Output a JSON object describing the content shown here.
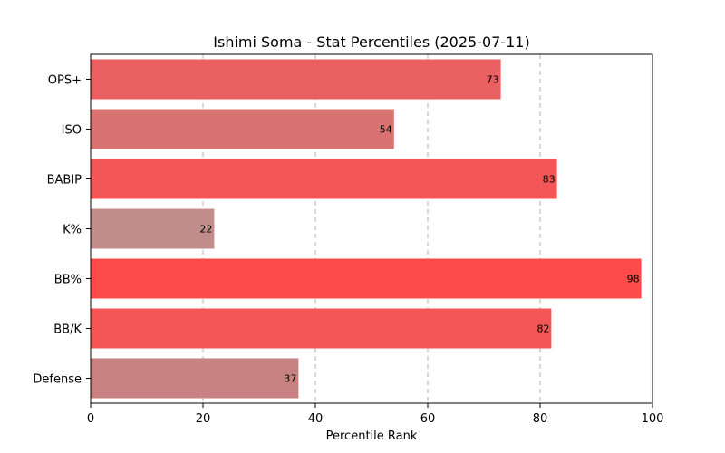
{
  "chart_data": {
    "type": "bar",
    "orientation": "horizontal",
    "title": "Ishimi Soma - Stat Percentiles (2025-07-11)",
    "xlabel": "Percentile Rank",
    "ylabel": "",
    "xlim": [
      0,
      100
    ],
    "xticks": [
      0,
      20,
      40,
      60,
      80,
      100
    ],
    "grid": "x-dashed",
    "categories": [
      "OPS+",
      "ISO",
      "BABIP",
      "K%",
      "BB%",
      "BB/K",
      "Defense"
    ],
    "values": [
      73,
      54,
      83,
      22,
      98,
      82,
      37
    ],
    "colors": [
      "#ea5f5f",
      "#d87372",
      "#f35657",
      "#c18d8b",
      "#fd4b4b",
      "#f45656",
      "#c78180"
    ]
  }
}
